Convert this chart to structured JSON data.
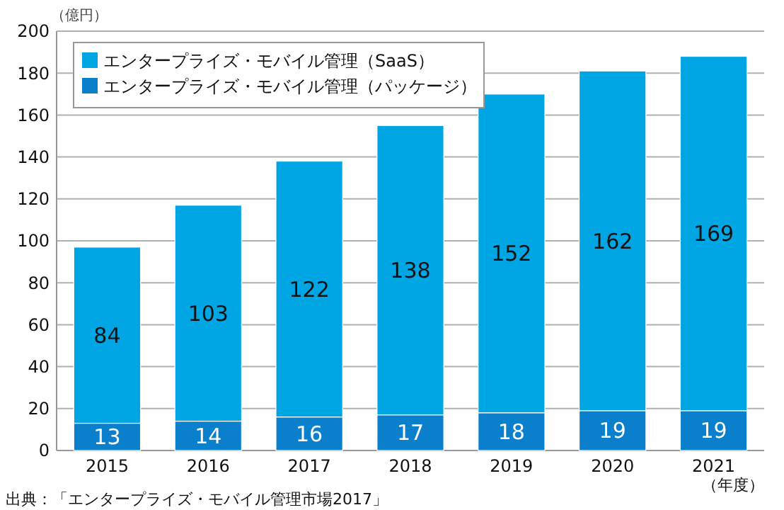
{
  "chart_data": {
    "type": "bar",
    "stacked": true,
    "ylabel": "（億円）",
    "xlabel": "（年度）",
    "categories": [
      "2015",
      "2016",
      "2017",
      "2018",
      "2019",
      "2020",
      "2021"
    ],
    "series": [
      {
        "name": "エンタープライズ・モバイル管理（パッケージ）",
        "color": "#0a7fcc",
        "values": [
          13,
          14,
          16,
          17,
          18,
          19,
          19
        ]
      },
      {
        "name": "エンタープライズ・モバイル管理（SaaS）",
        "color": "#00a5e3",
        "values": [
          84,
          103,
          122,
          138,
          152,
          162,
          169
        ]
      }
    ],
    "ylim": [
      0,
      200
    ],
    "yticks": [
      0,
      20,
      40,
      60,
      80,
      100,
      120,
      140,
      160,
      180,
      200
    ],
    "grid": "y",
    "legend": "top left",
    "data_labels": true,
    "annotations": [
      "出典：「エンタープライズ・モバイル管理市場2017」"
    ]
  }
}
